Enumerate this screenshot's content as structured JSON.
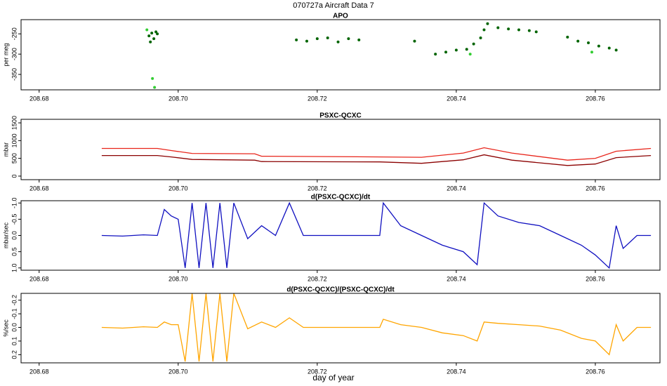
{
  "title": "070727a   Aircraft Data 7",
  "xlabel": "day of year",
  "chart_data": [
    {
      "type": "scatter",
      "title": "APO",
      "ylabel": "per meg",
      "xlim": [
        208.6774,
        208.7693
      ],
      "xticks": [
        208.68,
        {
          "value": 208.7,
          "label": "208.70"
        },
        208.72,
        208.74,
        208.76
      ],
      "ylim": [
        -388,
        -215
      ],
      "yticks": [
        -350,
        -300,
        -250
      ],
      "series": [
        {
          "color": "#006400",
          "x": [
            208.6958,
            208.696,
            208.6962,
            208.6965,
            208.6968,
            208.697,
            208.717,
            208.7185,
            208.72,
            208.7215,
            208.723,
            208.7245,
            208.726,
            208.734,
            208.737,
            208.7385,
            208.74,
            208.7415,
            208.7425,
            208.7435,
            208.744,
            208.7445,
            208.746,
            208.7475,
            208.749,
            208.7505,
            208.7515,
            208.756,
            208.7575,
            208.759,
            208.7605,
            208.762,
            208.763
          ],
          "values": [
            -255,
            -270,
            -248,
            -262,
            -245,
            -250,
            -265,
            -268,
            -262,
            -260,
            -270,
            -262,
            -265,
            -268,
            -300,
            -295,
            -290,
            -288,
            -275,
            -260,
            -240,
            -225,
            -235,
            -238,
            -240,
            -242,
            -245,
            -258,
            -268,
            -272,
            -280,
            -285,
            -290
          ]
        },
        {
          "color": "#32cd32",
          "x": [
            208.6955,
            208.6963,
            208.6966,
            208.742,
            208.7595
          ],
          "values": [
            -240,
            -360,
            -382,
            -300,
            -295
          ]
        }
      ]
    },
    {
      "type": "line",
      "title": "PSXC-QCXC",
      "ylabel": "mbar",
      "xlim": [
        208.6774,
        208.7693
      ],
      "xticks": [
        208.68,
        {
          "value": 208.7,
          "label": "208.70"
        },
        208.72,
        208.74,
        208.76
      ],
      "ylim": [
        -100,
        1600
      ],
      "yticks": [
        0,
        500,
        1000,
        1500
      ],
      "x": [
        208.689,
        208.697,
        208.699,
        208.702,
        208.711,
        208.712,
        208.729,
        208.735,
        208.741,
        208.744,
        208.748,
        208.756,
        208.76,
        208.763,
        208.768
      ],
      "series": [
        {
          "color": "#e8251b",
          "values": [
            780,
            780,
            720,
            640,
            630,
            560,
            540,
            530,
            650,
            800,
            650,
            450,
            500,
            700,
            780
          ]
        },
        {
          "color": "#8b0000",
          "values": [
            580,
            580,
            540,
            470,
            450,
            410,
            400,
            360,
            460,
            600,
            450,
            300,
            340,
            520,
            580
          ]
        }
      ]
    },
    {
      "type": "line",
      "title": "d(PSXC-QCXC)/dt",
      "ylabel": "mbar/sec",
      "xlim": [
        208.6774,
        208.7693
      ],
      "xticks": [
        208.68,
        {
          "value": 208.7,
          "label": "208.70"
        },
        208.72,
        208.74,
        208.76
      ],
      "ylim": [
        1.07,
        -1.07
      ],
      "yticks": [
        {
          "value": -1,
          "label": "-1.0"
        },
        -0.5,
        {
          "value": 0,
          "label": "0.0"
        },
        0.5,
        {
          "value": 1,
          "label": "1.0"
        }
      ],
      "x": [
        208.689,
        208.692,
        208.695,
        208.697,
        208.698,
        208.699,
        208.7,
        208.701,
        208.702,
        208.703,
        208.704,
        208.705,
        208.706,
        208.707,
        208.708,
        208.71,
        208.712,
        208.714,
        208.716,
        208.718,
        208.722,
        208.726,
        208.729,
        208.7295,
        208.732,
        208.735,
        208.738,
        208.741,
        208.743,
        208.744,
        208.746,
        208.749,
        208.752,
        208.755,
        208.758,
        208.76,
        208.762,
        208.763,
        208.764,
        208.766,
        208.768
      ],
      "series": [
        {
          "color": "#1010c0",
          "values": [
            0,
            0.02,
            -0.02,
            0,
            -0.8,
            -0.6,
            -0.5,
            1,
            -1,
            1,
            -1,
            1,
            -1,
            1,
            -1,
            0.1,
            -0.3,
            0,
            -1,
            0,
            0,
            0,
            0,
            -1,
            -0.3,
            0,
            0.3,
            0.5,
            0.9,
            -1,
            -0.6,
            -0.4,
            -0.3,
            0,
            0.3,
            0.6,
            1,
            -0.3,
            0.4,
            0,
            0
          ]
        }
      ]
    },
    {
      "type": "line",
      "title": "d(PSXC-QCXC)/(PSXC-QCXC)/dt",
      "ylabel": "%/sec",
      "xlim": [
        208.6774,
        208.7693
      ],
      "xticks": [
        208.68,
        {
          "value": 208.7,
          "label": "208.70"
        },
        208.72,
        208.74,
        208.76
      ],
      "ylim": [
        0.26,
        -0.25
      ],
      "yticks": [
        -0.2,
        -0.1,
        {
          "value": 0,
          "label": "0.0"
        },
        0.1,
        0.2
      ],
      "x": [
        208.689,
        208.692,
        208.695,
        208.697,
        208.698,
        208.699,
        208.7,
        208.701,
        208.702,
        208.703,
        208.704,
        208.705,
        208.706,
        208.707,
        208.708,
        208.71,
        208.712,
        208.714,
        208.716,
        208.718,
        208.722,
        208.726,
        208.729,
        208.7295,
        208.732,
        208.735,
        208.738,
        208.741,
        208.743,
        208.744,
        208.746,
        208.749,
        208.752,
        208.755,
        208.758,
        208.76,
        208.762,
        208.763,
        208.764,
        208.766,
        208.768
      ],
      "series": [
        {
          "color": "#ffa500",
          "values": [
            0,
            0.005,
            -0.005,
            0,
            -0.04,
            -0.02,
            -0.02,
            0.25,
            -0.25,
            0.25,
            -0.25,
            0.25,
            -0.25,
            0.25,
            -0.25,
            0.01,
            -0.04,
            0,
            -0.07,
            0,
            0,
            0,
            0,
            -0.06,
            -0.02,
            0,
            0.04,
            0.06,
            0.1,
            -0.04,
            -0.03,
            -0.02,
            -0.01,
            0.02,
            0.08,
            0.1,
            0.2,
            -0.02,
            0.1,
            0,
            0
          ]
        }
      ]
    }
  ]
}
